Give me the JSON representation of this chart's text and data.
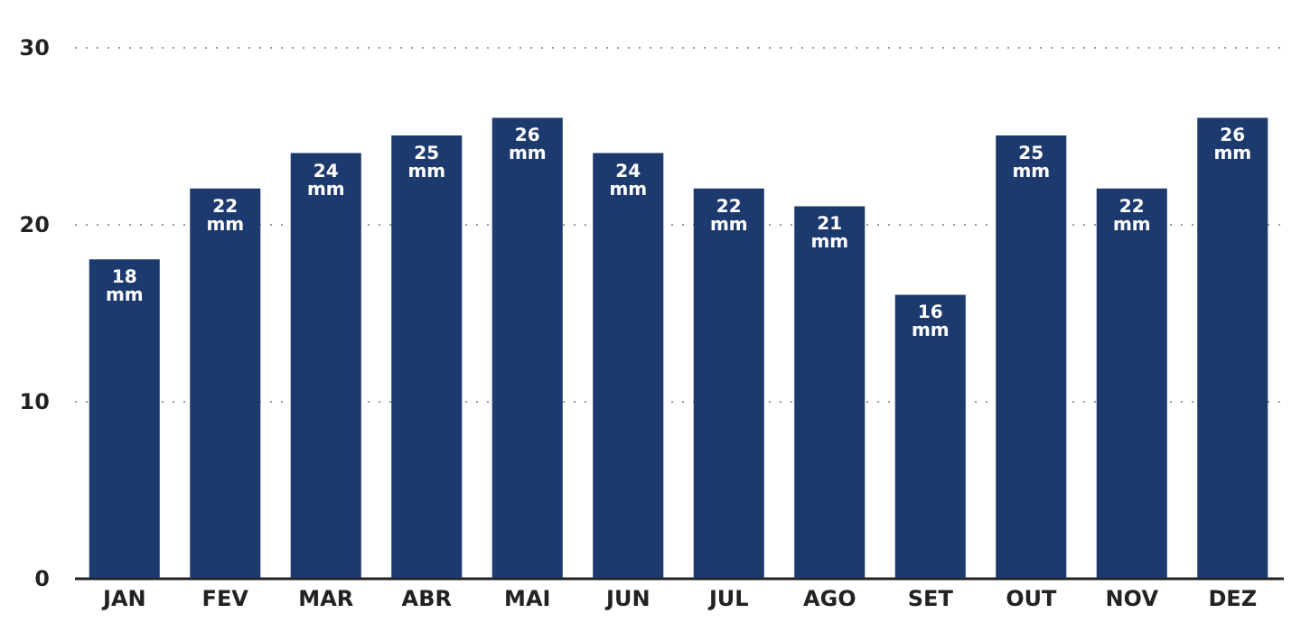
{
  "chart_data": {
    "type": "bar",
    "categories": [
      "JAN",
      "FEV",
      "MAR",
      "ABR",
      "MAI",
      "JUN",
      "JUL",
      "AGO",
      "SET",
      "OUT",
      "NOV",
      "DEZ"
    ],
    "values": [
      18,
      22,
      24,
      25,
      26,
      24,
      22,
      21,
      16,
      25,
      22,
      26
    ],
    "value_labels": [
      "18\nmm",
      "22\nmm",
      "24\nmm",
      "25\nmm",
      "26\nmm",
      "24\nmm",
      "22\nmm",
      "21\nmm",
      "16\nmm",
      "25\nmm",
      "22\nmm",
      "26\nmm"
    ],
    "color": "#1d3a6e",
    "ylim": [
      0,
      30
    ],
    "yticks": [
      0,
      10,
      20,
      30
    ],
    "grid": "y"
  }
}
